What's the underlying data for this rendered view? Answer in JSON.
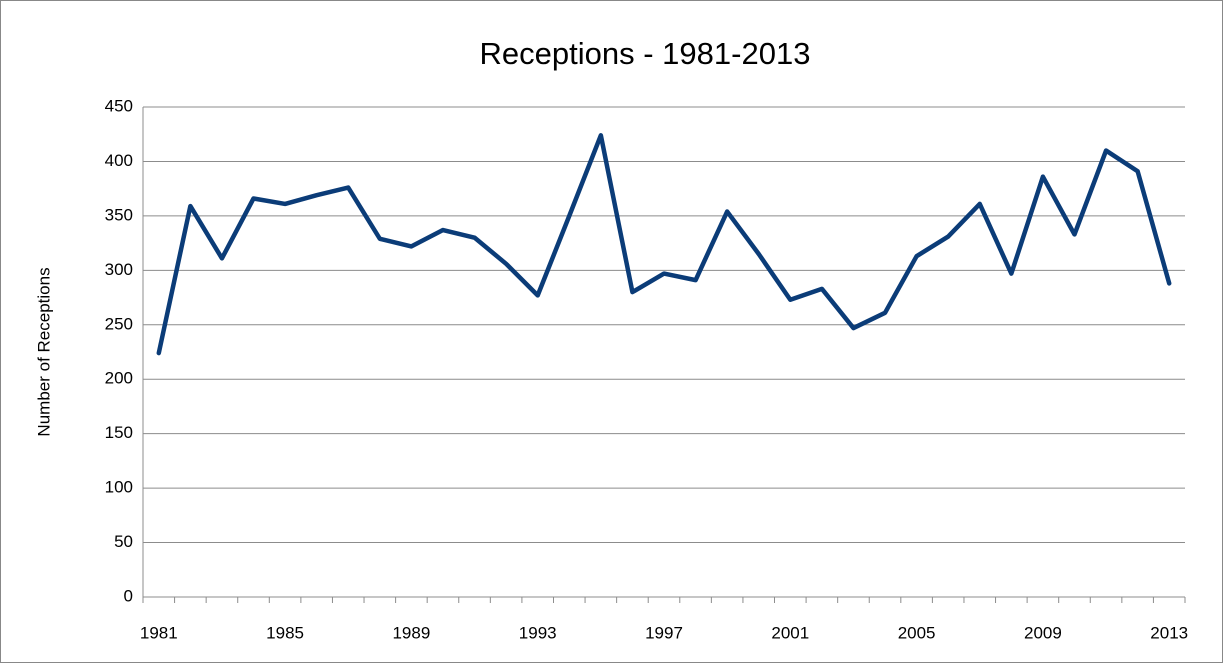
{
  "chart_data": {
    "type": "line",
    "title": "Receptions - 1981-2013",
    "y_label": "Number of Receptions",
    "categories": [
      "1981",
      null,
      null,
      null,
      "1985",
      null,
      null,
      null,
      "1989",
      null,
      null,
      null,
      "1993",
      null,
      null,
      null,
      "1997",
      null,
      null,
      null,
      "2001",
      null,
      null,
      null,
      "2005",
      null,
      null,
      null,
      "2009",
      null,
      null,
      null,
      "2013"
    ],
    "series": [
      {
        "name": "Receptions",
        "color": "#0b3c78",
        "values": [
          224,
          359,
          311,
          366,
          361,
          369,
          376,
          329,
          322,
          337,
          330,
          306,
          277,
          350,
          424,
          280,
          297,
          291,
          354,
          315,
          273,
          283,
          247,
          261,
          313,
          331,
          361,
          297,
          386,
          333,
          410,
          391,
          288
        ]
      }
    ],
    "ylim": [
      0,
      450
    ],
    "yticks": [
      0,
      50,
      100,
      150,
      200,
      250,
      300,
      350,
      400,
      450
    ],
    "grid": true
  }
}
